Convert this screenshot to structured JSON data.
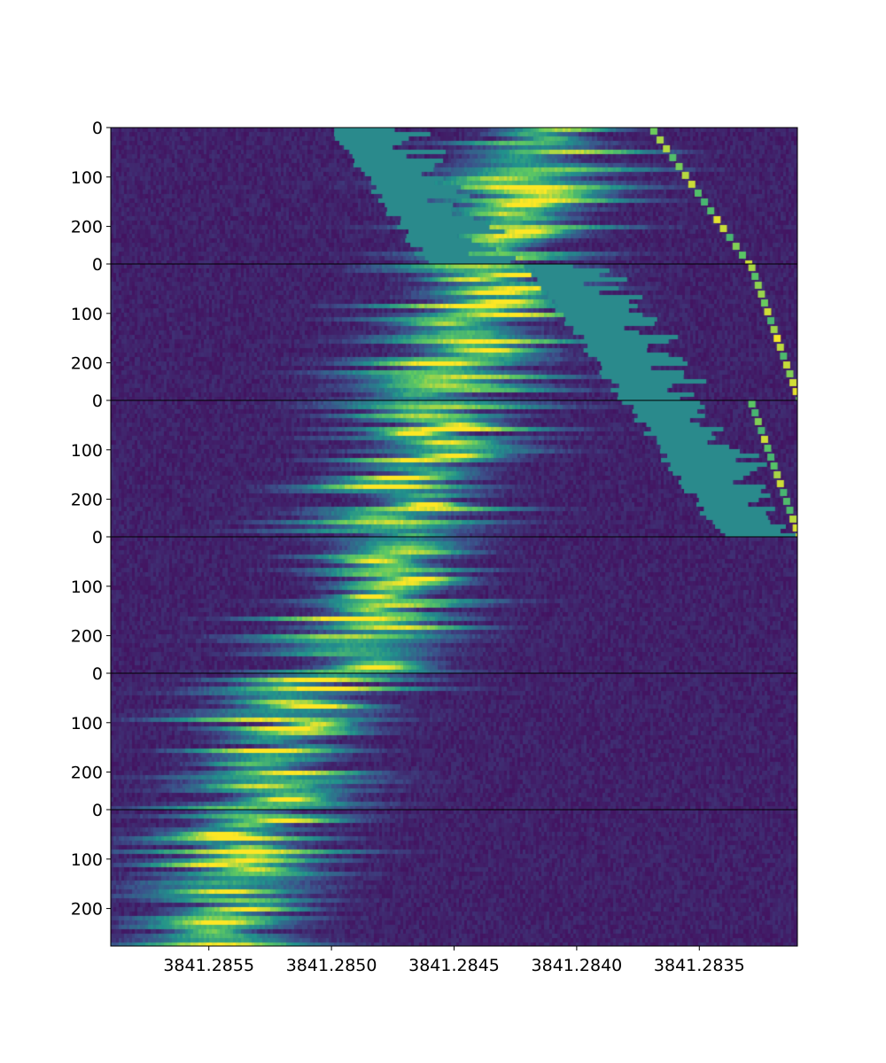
{
  "chart_data": {
    "type": "heatmap",
    "title": "",
    "xlabel": "",
    "ylabel": "",
    "colormap": "viridis",
    "colormap_stops": [
      "#440154",
      "#3b528b",
      "#21918c",
      "#5ec962",
      "#fde725"
    ],
    "xlim": [
      3841.2859,
      3841.2831
    ],
    "x_inverted": true,
    "x_ticks": [
      3841.2855,
      3841.285,
      3841.2845,
      3841.284,
      3841.2835
    ],
    "x_tick_labels": [
      "3841.2855",
      "3841.2850",
      "3841.2845",
      "3841.2840",
      "3841.2835"
    ],
    "y_tick_labels": [
      "0",
      "100",
      "200"
    ],
    "panels": [
      {
        "ylim": [
          276,
          0
        ],
        "y_ticks": [
          0,
          100,
          200
        ],
        "trace_center_x": [
          3841.2841,
          3841.2844
        ],
        "saturated_patch_edge_x": [
          3841.285,
          3841.2846
        ],
        "spike_track_x": [
          3841.2837,
          3841.2833
        ]
      },
      {
        "ylim": [
          276,
          0
        ],
        "y_ticks": [
          0,
          100,
          200
        ],
        "trace_center_x": [
          3841.2843,
          3841.2846
        ],
        "saturated_patch_edge_x": [
          3841.2842,
          3841.2838
        ],
        "spike_track_x": [
          3841.2833,
          3841.2831
        ]
      },
      {
        "ylim": [
          276,
          0
        ],
        "y_ticks": [
          0,
          100,
          200
        ],
        "trace_center_x": [
          3841.2845,
          3841.2848
        ],
        "saturated_patch_edge_x": [
          3841.2838,
          3841.2834
        ],
        "spike_track_x": [
          3841.2833,
          3841.2831
        ]
      },
      {
        "ylim": [
          276,
          0
        ],
        "y_ticks": [
          0,
          100,
          200
        ],
        "trace_center_x": [
          3841.2847,
          3841.2849
        ]
      },
      {
        "ylim": [
          276,
          0
        ],
        "y_ticks": [
          0,
          100,
          200
        ],
        "trace_center_x": [
          3841.2851,
          3841.2853
        ]
      },
      {
        "ylim": [
          276,
          0
        ],
        "y_ticks": [
          0,
          100,
          200
        ],
        "trace_center_x": [
          3841.2853,
          3841.2855
        ]
      }
    ]
  }
}
